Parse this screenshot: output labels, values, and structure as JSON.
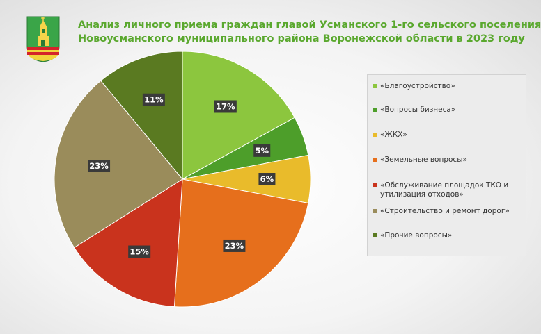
{
  "title": {
    "line1": "Анализ личного приема граждан главой Усманского 1-го сельского поселения",
    "line2": "Новоусманского муниципального района Воронежской области в 2023 году"
  },
  "emblem": {
    "icon": "coat-of-arms-icon"
  },
  "chart_data": {
    "type": "pie",
    "categories": [
      "«Благоустройство»",
      "«Вопросы бизнеса»",
      "«ЖКХ»",
      "«Земельные вопросы»",
      "«Обслуживание площадок ТКО и утилизация отходов»",
      "«Строительство и ремонт дорог»",
      "«Прочие вопросы»"
    ],
    "values": [
      17,
      5,
      6,
      23,
      15,
      23,
      11
    ],
    "labels": [
      "17%",
      "5%",
      "6%",
      "23%",
      "15%",
      "23%",
      "11%"
    ],
    "colors": [
      "#8cc63e",
      "#4d9e2a",
      "#e9bb2b",
      "#e66f1c",
      "#c9331d",
      "#9a8c5b",
      "#5a7a21"
    ],
    "legend_position": "right"
  }
}
